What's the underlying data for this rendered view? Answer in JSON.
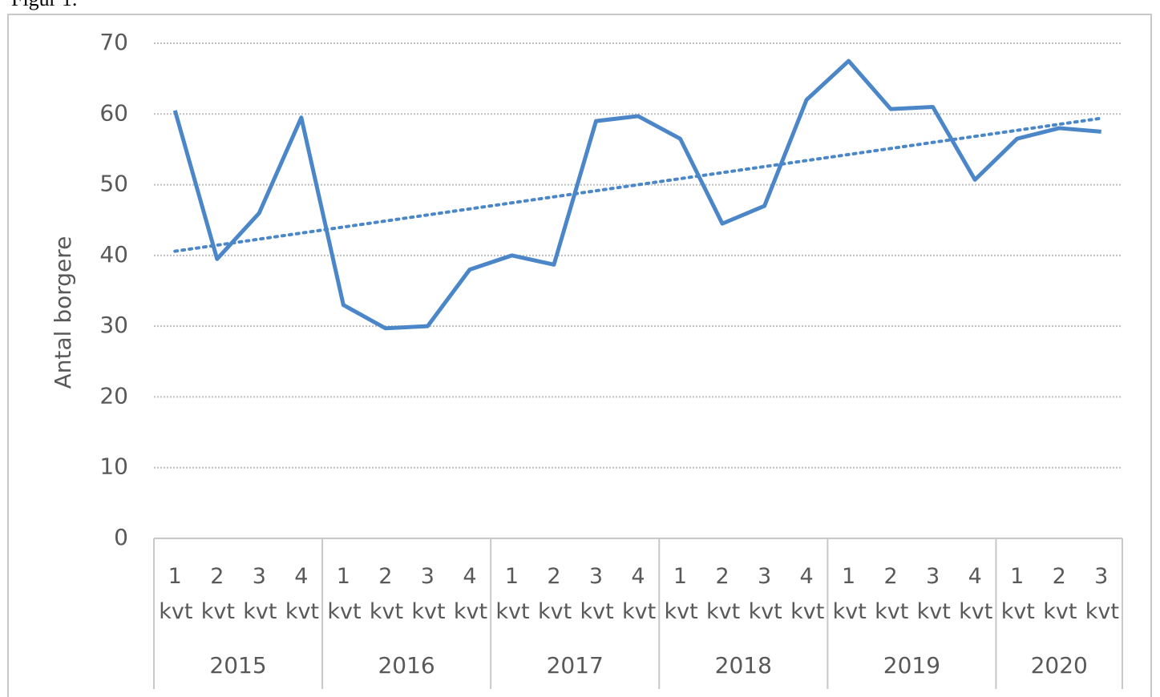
{
  "caption": "Figur 1.",
  "chart_data": {
    "type": "line",
    "y_label": "Antal borgere",
    "categories": [
      "1 kvt",
      "2 kvt",
      "3 kvt",
      "4 kvt",
      "1 kvt",
      "2 kvt",
      "3 kvt",
      "4 kvt",
      "1 kvt",
      "2 kvt",
      "3 kvt",
      "4 kvt",
      "1 kvt",
      "2 kvt",
      "3 kvt",
      "4 kvt",
      "1 kvt",
      "2 kvt",
      "3 kvt",
      "4 kvt",
      "1 kvt",
      "2 kvt",
      "3 kvt"
    ],
    "years": [
      "2015",
      "2016",
      "2017",
      "2018",
      "2019",
      "2020"
    ],
    "values": [
      60.5,
      39.5,
      46,
      59.5,
      33,
      29.7,
      30,
      38,
      40,
      38.7,
      59,
      59.7,
      56.5,
      44.5,
      47,
      62,
      67.5,
      60.7,
      61,
      50.7,
      56.5,
      58,
      57.5
    ],
    "color": "#4a86c8",
    "trend": {
      "values": [
        40.6,
        59.4
      ],
      "style": "dotted"
    },
    "ylim": [
      0,
      70
    ],
    "yticks": [
      0,
      10,
      20,
      30,
      40,
      50,
      60,
      70
    ],
    "grid": true
  }
}
